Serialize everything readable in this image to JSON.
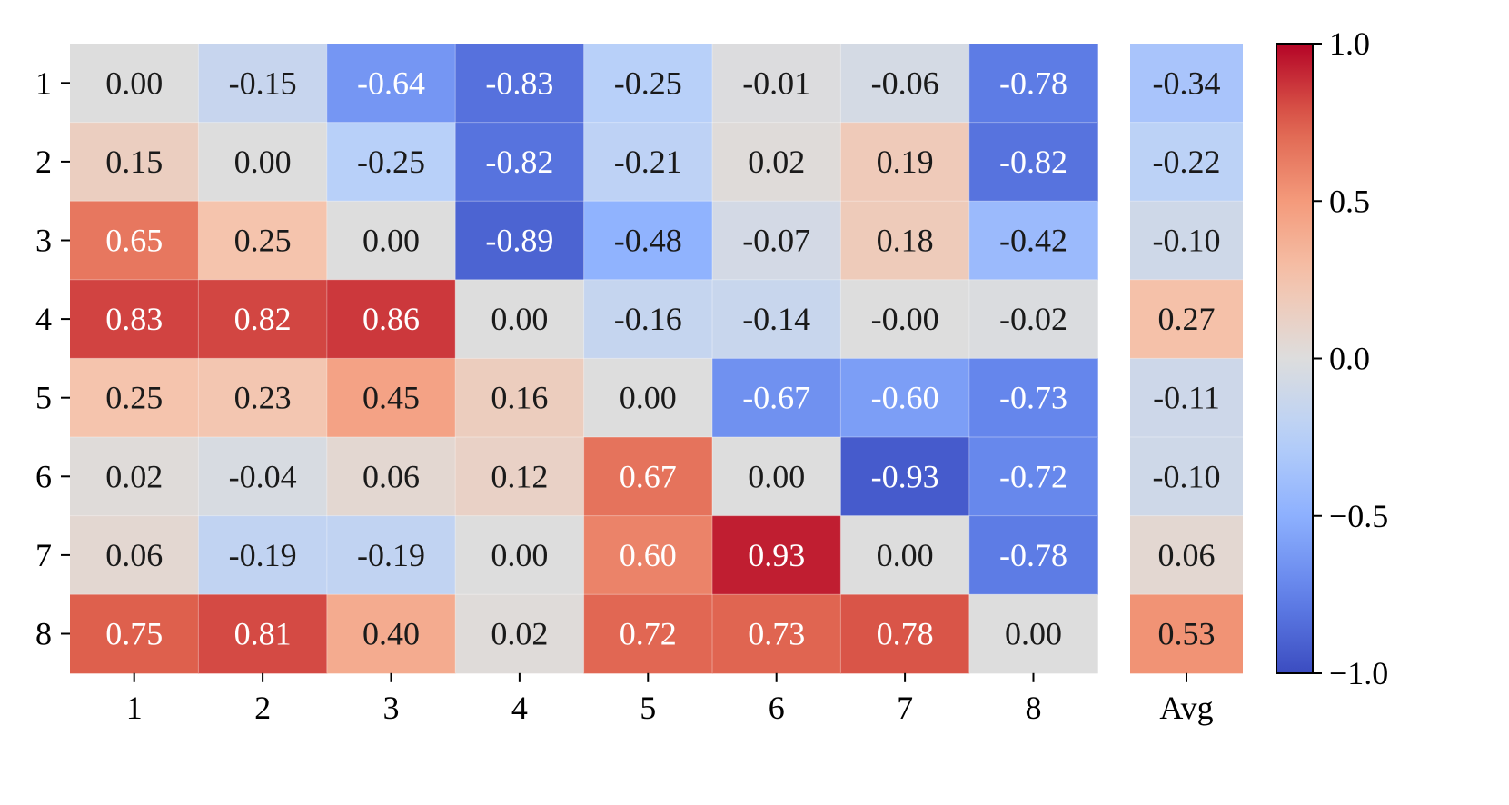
{
  "chart_data": {
    "type": "heatmap",
    "row_labels": [
      "1",
      "2",
      "3",
      "4",
      "5",
      "6",
      "7",
      "8"
    ],
    "col_labels": [
      "1",
      "2",
      "3",
      "4",
      "5",
      "6",
      "7",
      "8"
    ],
    "values": [
      [
        0.0,
        -0.15,
        -0.64,
        -0.83,
        -0.25,
        -0.01,
        -0.06,
        -0.78
      ],
      [
        0.15,
        0.0,
        -0.25,
        -0.82,
        -0.21,
        0.02,
        0.19,
        -0.82
      ],
      [
        0.65,
        0.25,
        0.0,
        -0.89,
        -0.48,
        -0.07,
        0.18,
        -0.42
      ],
      [
        0.83,
        0.82,
        0.86,
        0.0,
        -0.16,
        -0.14,
        -0.0,
        -0.02
      ],
      [
        0.25,
        0.23,
        0.45,
        0.16,
        0.0,
        -0.67,
        -0.6,
        -0.73
      ],
      [
        0.02,
        -0.04,
        0.06,
        0.12,
        0.67,
        0.0,
        -0.93,
        -0.72
      ],
      [
        0.06,
        -0.19,
        -0.19,
        0.0,
        0.6,
        0.93,
        0.0,
        -0.78
      ],
      [
        0.75,
        0.81,
        0.4,
        0.02,
        0.72,
        0.73,
        0.78,
        0.0
      ]
    ],
    "cell_labels": [
      [
        "0.00",
        "-0.15",
        "-0.64",
        "-0.83",
        "-0.25",
        "-0.01",
        "-0.06",
        "-0.78"
      ],
      [
        "0.15",
        "0.00",
        "-0.25",
        "-0.82",
        "-0.21",
        "0.02",
        "0.19",
        "-0.82"
      ],
      [
        "0.65",
        "0.25",
        "0.00",
        "-0.89",
        "-0.48",
        "-0.07",
        "0.18",
        "-0.42"
      ],
      [
        "0.83",
        "0.82",
        "0.86",
        "0.00",
        "-0.16",
        "-0.14",
        "-0.00",
        "-0.02"
      ],
      [
        "0.25",
        "0.23",
        "0.45",
        "0.16",
        "0.00",
        "-0.67",
        "-0.60",
        "-0.73"
      ],
      [
        "0.02",
        "-0.04",
        "0.06",
        "0.12",
        "0.67",
        "0.00",
        "-0.93",
        "-0.72"
      ],
      [
        "0.06",
        "-0.19",
        "-0.19",
        "0.00",
        "0.60",
        "0.93",
        "0.00",
        "-0.78"
      ],
      [
        "0.75",
        "0.81",
        "0.40",
        "0.02",
        "0.72",
        "0.73",
        "0.78",
        "0.00"
      ]
    ],
    "avg_column": {
      "label": "Avg",
      "values": [
        -0.34,
        -0.22,
        -0.1,
        0.27,
        -0.11,
        -0.1,
        0.06,
        0.53
      ],
      "labels": [
        "-0.34",
        "-0.22",
        "-0.10",
        "0.27",
        "-0.11",
        "-0.10",
        "0.06",
        "0.53"
      ]
    },
    "colorbar": {
      "colormap": "coolwarm",
      "range": [
        -1.0,
        1.0
      ],
      "ticks": [
        1.0,
        0.5,
        0.0,
        -0.5,
        -1.0
      ],
      "tick_labels": [
        "1.0",
        "0.5",
        "0.0",
        "−0.5",
        "−1.0"
      ],
      "placement": "right"
    },
    "title": "",
    "xlabel": "",
    "ylabel": ""
  }
}
